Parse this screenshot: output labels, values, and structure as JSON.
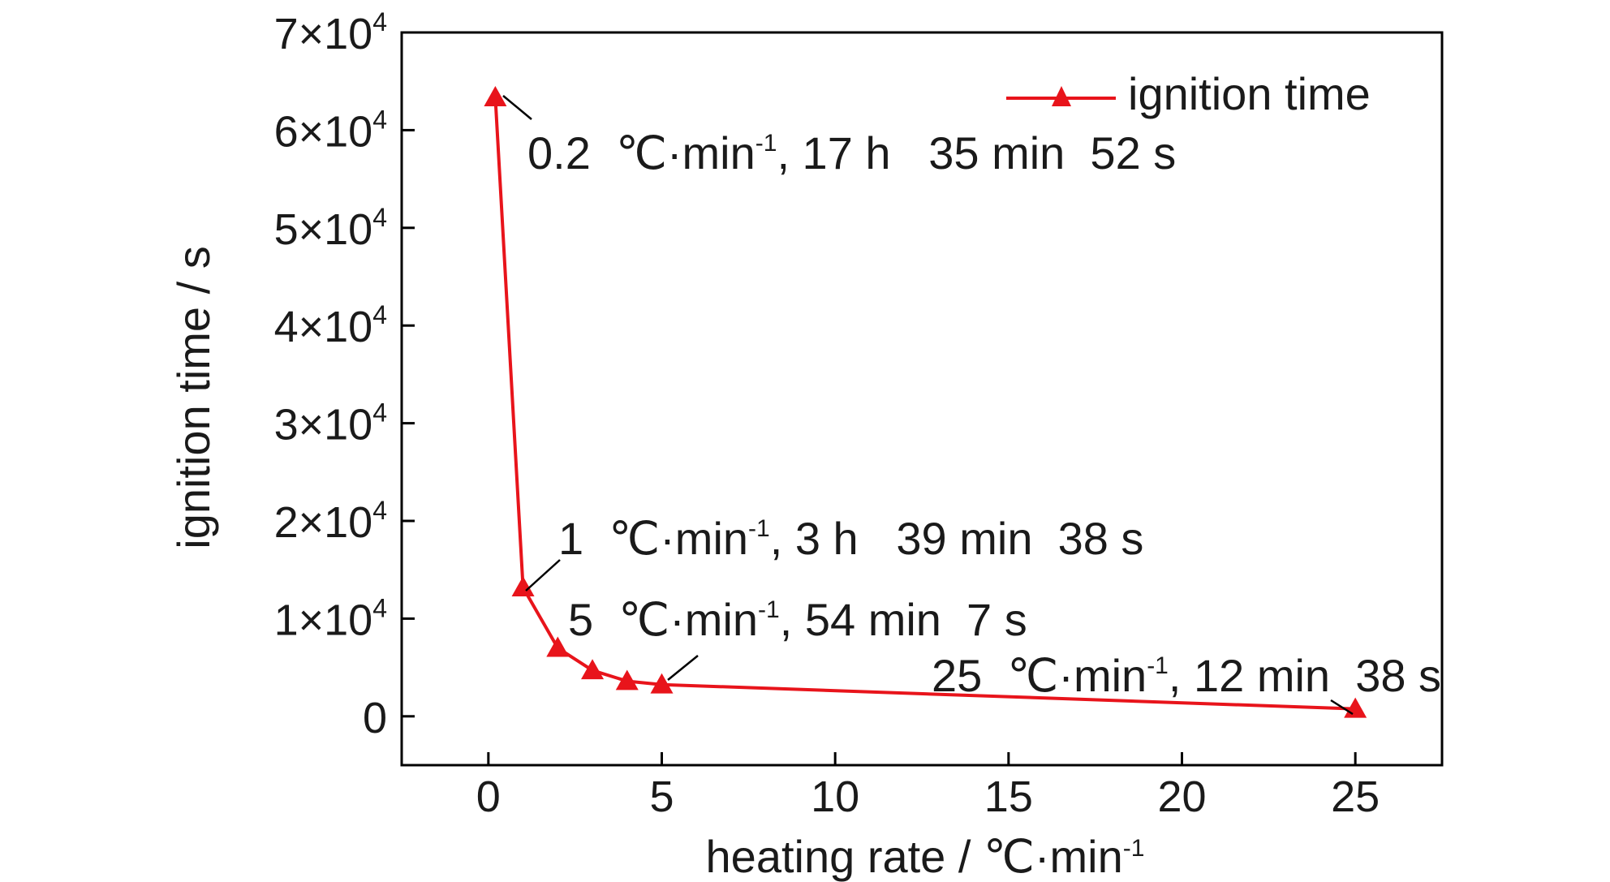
{
  "chart_data": {
    "type": "line",
    "xlabel": {
      "main": "heating rate / ℃·min",
      "sup": "-1"
    },
    "ylabel": "ignition time / s",
    "xlim": [
      -2.5,
      27.5
    ],
    "ylim": [
      -5000,
      70000
    ],
    "x_ticks": [
      {
        "value": 0,
        "label": "0"
      },
      {
        "value": 5,
        "label": "5"
      },
      {
        "value": 10,
        "label": "10"
      },
      {
        "value": 15,
        "label": "15"
      },
      {
        "value": 20,
        "label": "20"
      },
      {
        "value": 25,
        "label": "25"
      }
    ],
    "y_ticks": [
      {
        "value": 0,
        "mantissa": "0",
        "exp": ""
      },
      {
        "value": 10000,
        "mantissa": "1×10",
        "exp": "4"
      },
      {
        "value": 20000,
        "mantissa": "2×10",
        "exp": "4"
      },
      {
        "value": 30000,
        "mantissa": "3×10",
        "exp": "4"
      },
      {
        "value": 40000,
        "mantissa": "4×10",
        "exp": "4"
      },
      {
        "value": 50000,
        "mantissa": "5×10",
        "exp": "4"
      },
      {
        "value": 60000,
        "mantissa": "6×10",
        "exp": "4"
      },
      {
        "value": 70000,
        "mantissa": "7×10",
        "exp": "4"
      }
    ],
    "series": [
      {
        "name": "ignition time",
        "color": "#e8141b",
        "marker": "triangle",
        "x": [
          0.2,
          1,
          2,
          3,
          4,
          5,
          25
        ],
        "y": [
          63352,
          13178,
          7000,
          4700,
          3600,
          3247,
          758
        ]
      }
    ],
    "legend": {
      "position": "top-right",
      "label": "ignition time"
    },
    "annotations": [
      {
        "rate": "0.2",
        "time": ", 17 h   35 min  52 s",
        "point": 0
      },
      {
        "rate": "1",
        "time": ", 3 h   39 min  38 s",
        "point": 1
      },
      {
        "rate": "5",
        "time": ", 54 min  7 s",
        "point": 5
      },
      {
        "rate": "25",
        "time": ", 12 min  38 s",
        "point": 6
      }
    ],
    "unit_text": "℃·min",
    "unit_sup": "-1",
    "grid": false
  }
}
